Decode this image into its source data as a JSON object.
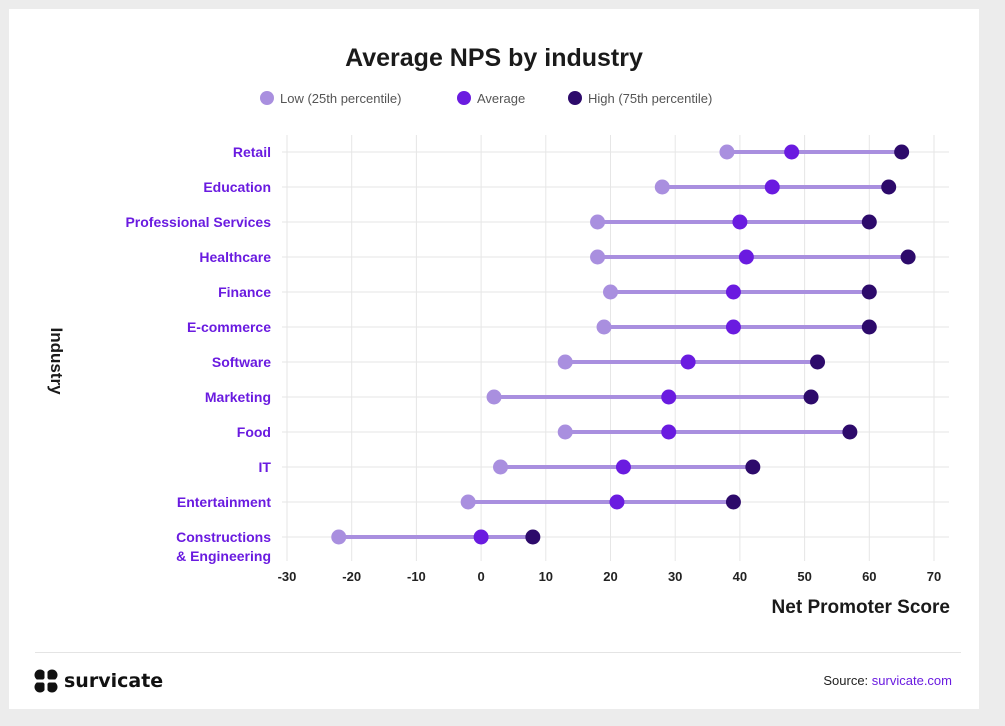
{
  "chart_data": {
    "type": "dumbbell",
    "title": "Average NPS by industry",
    "xlabel": "Net Promoter Score",
    "ylabel": "Industry",
    "xlim": [
      -30,
      70
    ],
    "xticks": [
      "-30",
      "-20",
      "-10",
      "0",
      "10",
      "20",
      "30",
      "40",
      "50",
      "60",
      "70"
    ],
    "grid": true,
    "legend_position": "top-center",
    "legend": [
      {
        "key": "low",
        "label": "Low (25th percentile)",
        "color": "#a98fdf"
      },
      {
        "key": "avg",
        "label": "Average",
        "color": "#6a1be0"
      },
      {
        "key": "high",
        "label": "High (75th percentile)",
        "color": "#2d0a6b"
      }
    ],
    "rows": [
      {
        "category": "Retail",
        "low": 38,
        "avg": 48,
        "high": 65
      },
      {
        "category": "Education",
        "low": 28,
        "avg": 45,
        "high": 63
      },
      {
        "category": "Professional Services",
        "low": 18,
        "avg": 40,
        "high": 60
      },
      {
        "category": "Healthcare",
        "low": 18,
        "avg": 41,
        "high": 66
      },
      {
        "category": "Finance",
        "low": 20,
        "avg": 39,
        "high": 60
      },
      {
        "category": "E-commerce",
        "low": 19,
        "avg": 39,
        "high": 60
      },
      {
        "category": "Software",
        "low": 13,
        "avg": 32,
        "high": 52
      },
      {
        "category": "Marketing",
        "low": 2,
        "avg": 29,
        "high": 51
      },
      {
        "category": "Food",
        "low": 13,
        "avg": 29,
        "high": 57
      },
      {
        "category": "IT",
        "low": 3,
        "avg": 22,
        "high": 42
      },
      {
        "category": "Entertainment",
        "low": -2,
        "avg": 21,
        "high": 39
      },
      {
        "category": "Constructions\n& Engineering",
        "low": -22,
        "avg": 0,
        "high": 8
      }
    ],
    "colors": {
      "line": "#a98fdf",
      "label": "#6a1be0",
      "grid": "#e6e6e6",
      "text": "#1a1a1a"
    }
  },
  "footer": {
    "brand": "survicate",
    "source_label": "Source:",
    "source_link": "survicate.com"
  }
}
